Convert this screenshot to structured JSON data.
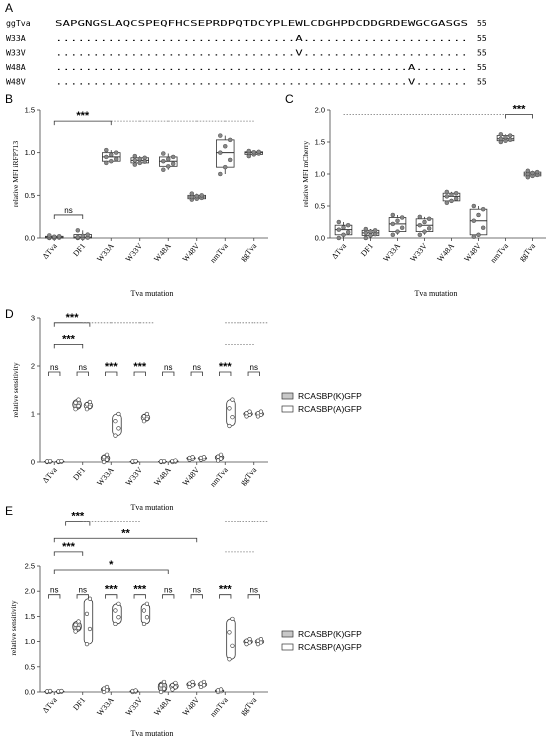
{
  "seq": {
    "label": "A",
    "ref_name": "ggTva",
    "ref_seq": "SAPGNGSLAQCSPEQFHCSEPRDPQTDCYPLEWLCDGHPDCDDGRDEWGCGASGS",
    "ref_len": "55",
    "rows": [
      {
        "name": "W33A",
        "pos": 33,
        "aa": "A",
        "len": "55"
      },
      {
        "name": "W33V",
        "pos": 33,
        "aa": "V",
        "len": "55"
      },
      {
        "name": "W48A",
        "pos": 48,
        "aa": "A",
        "len": "55"
      },
      {
        "name": "W48V",
        "pos": 48,
        "aa": "V",
        "len": "55"
      }
    ]
  },
  "chart_data": [
    {
      "panel": "B",
      "type": "box",
      "ylabel": "relative MFI iRFP713",
      "xlabel": "Tva mutation",
      "ylim": [
        0,
        1.5
      ],
      "yticks": [
        "0.0",
        "0.5",
        "1.0",
        "1.5"
      ],
      "categories": [
        "ΔTva",
        "DF1",
        "W33A",
        "W33V",
        "W48A",
        "W48V",
        "nmTva",
        "ggTva"
      ],
      "boxes": [
        {
          "min": 0.0,
          "q1": 0.0,
          "med": 0.01,
          "q3": 0.02,
          "max": 0.03
        },
        {
          "min": 0.0,
          "q1": 0.0,
          "med": 0.01,
          "q3": 0.04,
          "max": 0.09
        },
        {
          "min": 0.88,
          "q1": 0.9,
          "med": 0.95,
          "q3": 1.0,
          "max": 1.03
        },
        {
          "min": 0.86,
          "q1": 0.88,
          "med": 0.91,
          "q3": 0.94,
          "max": 0.96
        },
        {
          "min": 0.8,
          "q1": 0.84,
          "med": 0.9,
          "q3": 0.95,
          "max": 0.99
        },
        {
          "min": 0.45,
          "q1": 0.46,
          "med": 0.48,
          "q3": 0.5,
          "max": 0.52
        },
        {
          "min": 0.75,
          "q1": 0.83,
          "med": 1.0,
          "q3": 1.15,
          "max": 1.2
        },
        {
          "min": 0.96,
          "q1": 0.98,
          "med": 1.0,
          "q3": 1.01,
          "max": 1.02
        }
      ],
      "annotations": [
        {
          "text": "ns",
          "from": 0,
          "to": 1,
          "y": 0.27
        },
        {
          "text": "***",
          "from": 0,
          "to": 2,
          "y": 1.37
        }
      ]
    },
    {
      "panel": "C",
      "type": "box",
      "ylabel": "relative MFI mCherry",
      "xlabel": "Tva mutation",
      "ylim": [
        0,
        2.0
      ],
      "yticks": [
        "0.0",
        "0.5",
        "1.0",
        "1.5",
        "2.0"
      ],
      "categories": [
        "ΔTva",
        "DF1",
        "W33A",
        "W33V",
        "W48A",
        "W48V",
        "nmTva",
        "ggTva"
      ],
      "boxes": [
        {
          "min": 0.0,
          "q1": 0.05,
          "med": 0.13,
          "q3": 0.2,
          "max": 0.25
        },
        {
          "min": 0.0,
          "q1": 0.04,
          "med": 0.08,
          "q3": 0.12,
          "max": 0.14
        },
        {
          "min": 0.05,
          "q1": 0.1,
          "med": 0.22,
          "q3": 0.32,
          "max": 0.36
        },
        {
          "min": 0.05,
          "q1": 0.1,
          "med": 0.2,
          "q3": 0.3,
          "max": 0.33
        },
        {
          "min": 0.55,
          "q1": 0.58,
          "med": 0.65,
          "q3": 0.7,
          "max": 0.72
        },
        {
          "min": 0.02,
          "q1": 0.05,
          "med": 0.27,
          "q3": 0.45,
          "max": 0.5
        },
        {
          "min": 1.5,
          "q1": 1.52,
          "med": 1.55,
          "q3": 1.6,
          "max": 1.62
        },
        {
          "min": 0.95,
          "q1": 0.97,
          "med": 1.0,
          "q3": 1.03,
          "max": 1.05
        }
      ],
      "annotations": [
        {
          "text": "***",
          "from": 6,
          "to": 7,
          "y": 1.93
        }
      ]
    },
    {
      "panel": "D",
      "type": "violin",
      "ylabel": "relative sensitivity",
      "xlabel": "Tva mutation",
      "ylim": [
        0,
        3
      ],
      "yticks": [
        "0",
        "1",
        "2",
        "3"
      ],
      "categories": [
        "ΔTva",
        "DF1",
        "W33A",
        "W33V",
        "W48A",
        "W48V",
        "nmTva",
        "ggTva"
      ],
      "series": [
        {
          "name": "RCASBP(K)GFP",
          "ranges": [
            [
              0,
              0.02
            ],
            [
              1.1,
              1.3
            ],
            [
              0,
              0.15
            ],
            [
              0,
              0.02
            ],
            [
              0,
              0.02
            ],
            [
              0.05,
              0.1
            ],
            [
              0.03,
              0.15
            ],
            [
              0.95,
              1.05
            ]
          ]
        },
        {
          "name": "RCASBP(A)GFP",
          "ranges": [
            [
              0,
              0.02
            ],
            [
              1.1,
              1.25
            ],
            [
              0.55,
              1.0
            ],
            [
              0.85,
              1.0
            ],
            [
              0,
              0.03
            ],
            [
              0.05,
              0.1
            ],
            [
              0.75,
              1.3
            ],
            [
              0.95,
              1.05
            ]
          ]
        }
      ],
      "annotations": [
        {
          "text": "ns",
          "from": 0,
          "to": 0,
          "y": 2.0
        },
        {
          "text": "ns",
          "from": 1,
          "to": 1,
          "y": 2.0
        },
        {
          "text": "***",
          "from": 2,
          "to": 2,
          "y": 2.0
        },
        {
          "text": "***",
          "from": 3,
          "to": 3,
          "y": 2.0
        },
        {
          "text": "ns",
          "from": 4,
          "to": 4,
          "y": 2.0
        },
        {
          "text": "ns",
          "from": 5,
          "to": 5,
          "y": 2.0
        },
        {
          "text": "***",
          "from": 6,
          "to": 6,
          "y": 2.0
        },
        {
          "text": "ns",
          "from": 7,
          "to": 7,
          "y": 2.0
        },
        {
          "text": "***",
          "from": 0,
          "to": 1,
          "y": 2.45
        },
        {
          "text": "***",
          "from": 0,
          "to": 1,
          "y": 2.9
        }
      ]
    },
    {
      "panel": "E",
      "type": "violin",
      "ylabel": "relative sensitivity",
      "xlabel": "Tva mutation",
      "ylim": [
        0,
        2.5
      ],
      "yticks": [
        "0.0",
        "0.5",
        "1.0",
        "1.5",
        "2.0",
        "2.5"
      ],
      "categories": [
        "ΔTva",
        "DF1",
        "W33A",
        "W33V",
        "W48A",
        "W48V",
        "nmTva",
        "ggTva"
      ],
      "series": [
        {
          "name": "RCASBP(K)GFP",
          "ranges": [
            [
              0,
              0.02
            ],
            [
              1.2,
              1.4
            ],
            [
              0,
              0.1
            ],
            [
              0,
              0.03
            ],
            [
              0,
              0.2
            ],
            [
              0.1,
              0.2
            ],
            [
              0,
              0.05
            ],
            [
              0.95,
              1.05
            ]
          ]
        },
        {
          "name": "RCASBP(A)GFP",
          "ranges": [
            [
              0,
              0.02
            ],
            [
              0.95,
              1.85
            ],
            [
              1.35,
              1.75
            ],
            [
              1.35,
              1.75
            ],
            [
              0.05,
              0.18
            ],
            [
              0.1,
              0.2
            ],
            [
              0.65,
              1.45
            ],
            [
              0.95,
              1.05
            ]
          ]
        }
      ],
      "annotations": [
        {
          "text": "ns",
          "from": 0,
          "to": 0,
          "y": 2.05
        },
        {
          "text": "ns",
          "from": 1,
          "to": 1,
          "y": 2.05
        },
        {
          "text": "***",
          "from": 2,
          "to": 2,
          "y": 2.05
        },
        {
          "text": "***",
          "from": 3,
          "to": 3,
          "y": 2.05
        },
        {
          "text": "ns",
          "from": 4,
          "to": 4,
          "y": 2.05
        },
        {
          "text": "ns",
          "from": 5,
          "to": 5,
          "y": 2.05
        },
        {
          "text": "***",
          "from": 6,
          "to": 6,
          "y": 2.05
        },
        {
          "text": "ns",
          "from": 7,
          "to": 7,
          "y": 2.05
        },
        {
          "text": "*",
          "from": 0,
          "to": 4,
          "y": 2.42
        },
        {
          "text": "***",
          "from": 0,
          "to": 1,
          "y": 2.78
        },
        {
          "text": "**",
          "from": 0,
          "to": 5,
          "y": 3.05
        },
        {
          "text": "***",
          "from": 1,
          "to": 1,
          "y": 3.38
        }
      ]
    }
  ]
}
